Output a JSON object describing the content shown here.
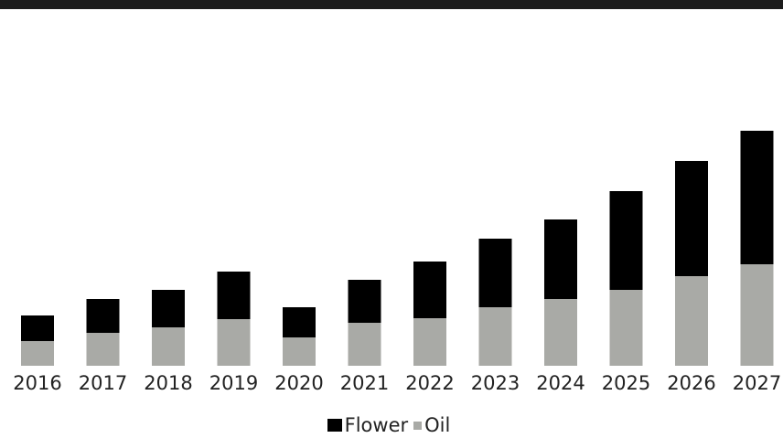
{
  "colors": {
    "flower": "#000000",
    "oil": "#a9aaa6",
    "top_band": "#1c1c1c"
  },
  "legend": {
    "items": [
      {
        "label": "Flower",
        "color": "#000000"
      },
      {
        "label": "Oil",
        "color": "#a9aaa6"
      }
    ]
  },
  "chart_data": {
    "type": "bar",
    "stacked": true,
    "title": "",
    "xlabel": "",
    "ylabel": "",
    "y_axis_visible": false,
    "grid": false,
    "legend_position": "bottom-center",
    "categories": [
      "2016",
      "2017",
      "2018",
      "2019",
      "2020",
      "2021",
      "2022",
      "2023",
      "2024",
      "2025",
      "2026",
      "2027"
    ],
    "series": [
      {
        "name": "Oil",
        "values": [
          27,
          36,
          42,
          51,
          31,
          47,
          52,
          64,
          73,
          83,
          98,
          111
        ]
      },
      {
        "name": "Flower",
        "values": [
          28,
          37,
          41,
          52,
          33,
          47,
          62,
          75,
          87,
          108,
          126,
          146
        ]
      }
    ]
  }
}
